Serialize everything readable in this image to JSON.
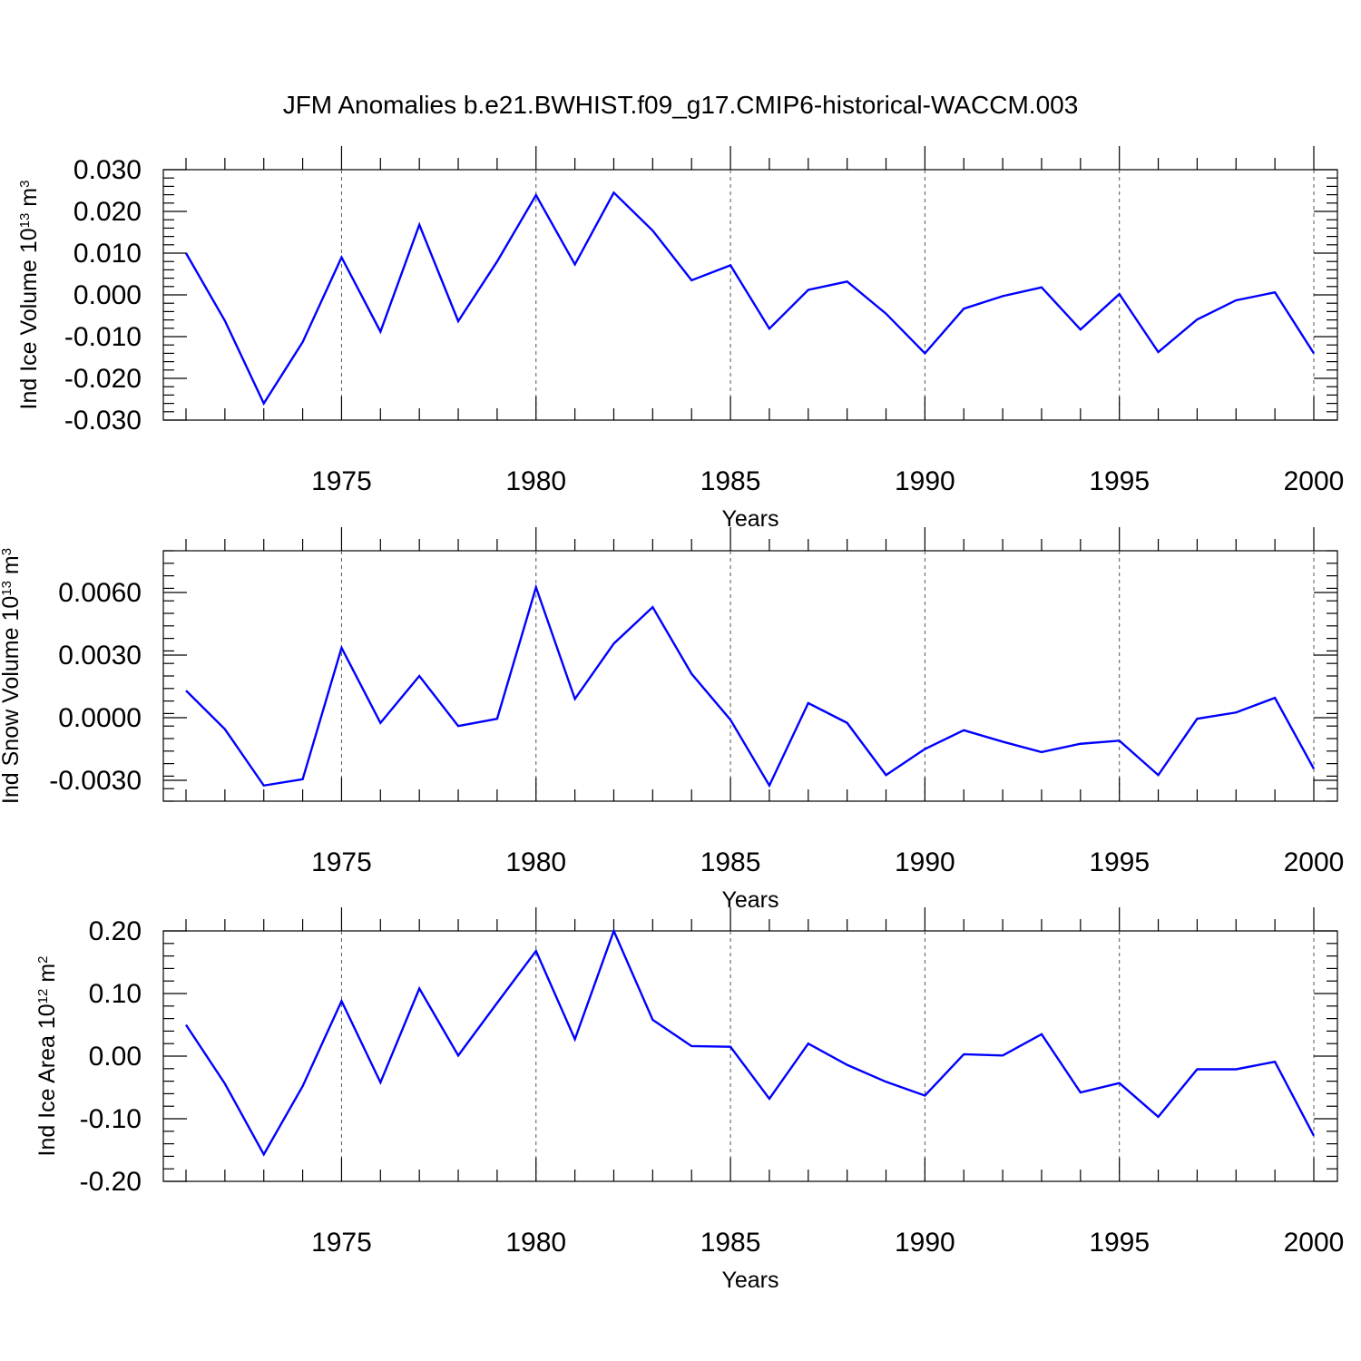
{
  "title": "JFM Anomalies b.e21.BWHIST.f09_g17.CMIP6-historical-WACCM.003",
  "colors": {
    "line": "#0000ff",
    "axis": "#000000",
    "grid": "#555555"
  },
  "chart_data": [
    {
      "type": "line",
      "xlabel": "Years",
      "ylabel": {
        "prefix": "Ind Ice Volume 10",
        "exp": "13",
        "unit": " m",
        "unit_exp": "3"
      },
      "xlim": [
        1971,
        2000
      ],
      "ylim": [
        -0.03,
        0.03
      ],
      "xticks": [
        1975,
        1980,
        1985,
        1990,
        1995,
        2000
      ],
      "xtick_labels": [
        "1975",
        "1980",
        "1985",
        "1990",
        "1995",
        "2000"
      ],
      "yticks": [
        -0.03,
        -0.02,
        -0.01,
        0.0,
        0.01,
        0.02,
        0.03
      ],
      "ytick_labels": [
        "-0.030",
        "-0.020",
        "-0.010",
        "0.000",
        "0.010",
        "0.020",
        "0.030"
      ],
      "grid": "vertical dashed at major x ticks",
      "x": [
        1971,
        1972,
        1973,
        1974,
        1975,
        1976,
        1977,
        1978,
        1979,
        1980,
        1981,
        1982,
        1983,
        1984,
        1985,
        1986,
        1987,
        1988,
        1989,
        1990,
        1991,
        1992,
        1993,
        1994,
        1995,
        1996,
        1997,
        1998,
        1999,
        2000
      ],
      "series": [
        {
          "values": [
            0.01,
            -0.0062,
            -0.026,
            -0.0113,
            0.009,
            -0.0088,
            0.0168,
            -0.0063,
            0.008,
            0.0239,
            0.0073,
            0.0245,
            0.0154,
            0.0035,
            0.0071,
            -0.0081,
            0.0012,
            0.0032,
            -0.0045,
            -0.014,
            -0.0033,
            -0.0003,
            0.0018,
            -0.0083,
            0.0002,
            -0.0137,
            -0.0059,
            -0.0013,
            0.0006,
            -0.014
          ]
        }
      ]
    },
    {
      "type": "line",
      "xlabel": "Years",
      "ylabel": {
        "prefix": "Ind Snow Volume 10",
        "exp": "13",
        "unit": " m",
        "unit_exp": "3"
      },
      "xlim": [
        1971,
        2000
      ],
      "ylim": [
        -0.004,
        0.008
      ],
      "xticks": [
        1975,
        1980,
        1985,
        1990,
        1995,
        2000
      ],
      "xtick_labels": [
        "1975",
        "1980",
        "1985",
        "1990",
        "1995",
        "2000"
      ],
      "yticks": [
        -0.003,
        0.0,
        0.003,
        0.006
      ],
      "ytick_labels": [
        "-0.0030",
        "0.0000",
        "0.0030",
        "0.0060"
      ],
      "grid": "vertical dashed at major x ticks",
      "x": [
        1971,
        1972,
        1973,
        1974,
        1975,
        1976,
        1977,
        1978,
        1979,
        1980,
        1981,
        1982,
        1983,
        1984,
        1985,
        1986,
        1987,
        1988,
        1989,
        1990,
        1991,
        1992,
        1993,
        1994,
        1995,
        1996,
        1997,
        1998,
        1999,
        2000
      ],
      "series": [
        {
          "values": [
            0.0013,
            -0.00055,
            -0.00325,
            -0.00295,
            0.00335,
            -0.00025,
            0.002,
            -0.0004,
            -5e-05,
            0.00625,
            0.0009,
            0.00355,
            0.0053,
            0.0021,
            -0.0001,
            -0.00325,
            0.0007,
            -0.00025,
            -0.00275,
            -0.0015,
            -0.0006,
            -0.00115,
            -0.00165,
            -0.00125,
            -0.0011,
            -0.00275,
            -5e-05,
            0.00025,
            0.00095,
            -0.00245
          ]
        }
      ]
    },
    {
      "type": "line",
      "xlabel": "Years",
      "ylabel": {
        "prefix": "Ind Ice Area 10",
        "exp": "12",
        "unit": " m",
        "unit_exp": "2"
      },
      "xlim": [
        1971,
        2000
      ],
      "ylim": [
        -0.2,
        0.2
      ],
      "xticks": [
        1975,
        1980,
        1985,
        1990,
        1995,
        2000
      ],
      "xtick_labels": [
        "1975",
        "1980",
        "1985",
        "1990",
        "1995",
        "2000"
      ],
      "yticks": [
        -0.2,
        -0.1,
        0.0,
        0.1,
        0.2
      ],
      "ytick_labels": [
        "-0.20",
        "-0.10",
        "0.00",
        "0.10",
        "0.20"
      ],
      "grid": "vertical dashed at major x ticks",
      "x": [
        1971,
        1972,
        1973,
        1974,
        1975,
        1976,
        1977,
        1978,
        1979,
        1980,
        1981,
        1982,
        1983,
        1984,
        1985,
        1986,
        1987,
        1988,
        1989,
        1990,
        1991,
        1992,
        1993,
        1994,
        1995,
        1996,
        1997,
        1998,
        1999,
        2000
      ],
      "series": [
        {
          "values": [
            0.05,
            -0.044,
            -0.157,
            -0.048,
            0.088,
            -0.042,
            0.108,
            0.001,
            0.085,
            0.168,
            0.027,
            0.2,
            0.058,
            0.016,
            0.015,
            -0.068,
            0.02,
            -0.014,
            -0.041,
            -0.063,
            0.003,
            0.001,
            0.035,
            -0.058,
            -0.043,
            -0.097,
            -0.021,
            -0.021,
            -0.009,
            -0.127
          ]
        }
      ]
    }
  ]
}
